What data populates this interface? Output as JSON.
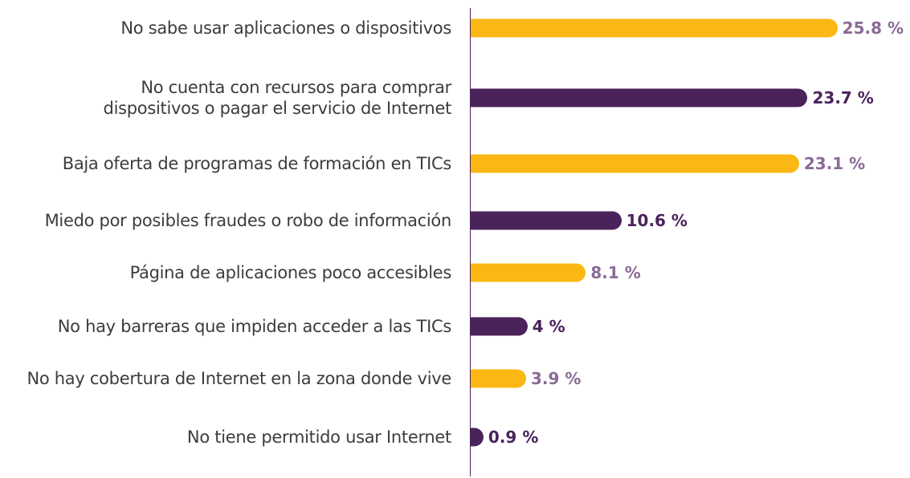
{
  "chart_data": {
    "type": "bar",
    "orientation": "horizontal",
    "categories": [
      "No sabe usar aplicaciones o dispositivos",
      "No cuenta con recursos para comprar\ndispositivos o pagar el servicio de Internet",
      "Baja oferta de programas de formación en TICs",
      "Miedo por posibles fraudes o robo de información",
      "Página de aplicaciones poco accesibles",
      "No hay barreras que impiden acceder a las TICs",
      "No hay cobertura de Internet en la zona donde vive",
      "No tiene permitido usar Internet"
    ],
    "values": [
      25.8,
      23.7,
      23.1,
      10.6,
      8.1,
      4,
      3.9,
      0.9
    ],
    "value_labels": [
      "25.8 %",
      "23.7 %",
      "23.1 %",
      "10.6 %",
      "8.1 %",
      "4 %",
      "3.9 %",
      "0.9 %"
    ],
    "colors": [
      "#fbb713",
      "#4a235a",
      "#fbb713",
      "#4a235a",
      "#fbb713",
      "#4a235a",
      "#fbb713",
      "#4a235a"
    ],
    "label_colors": [
      "#8a6a96",
      "#4a235a",
      "#8a6a96",
      "#4a235a",
      "#8a6a96",
      "#4a235a",
      "#8a6a96",
      "#4a235a"
    ]
  }
}
